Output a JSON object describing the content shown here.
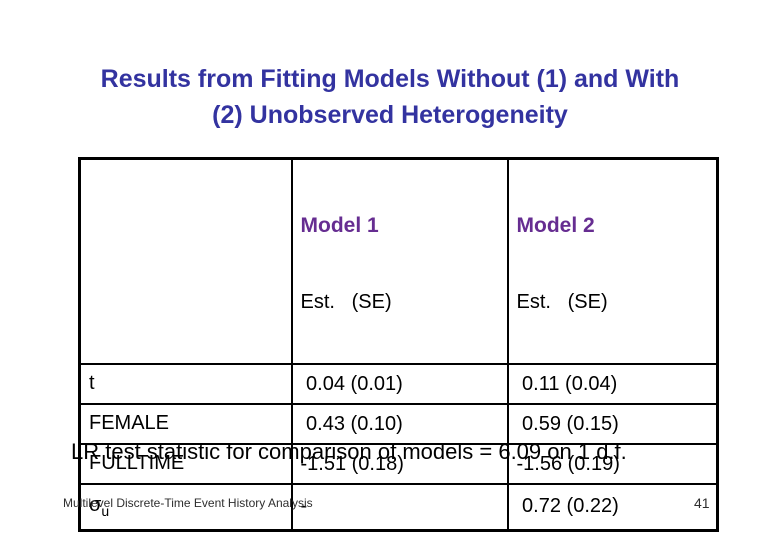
{
  "slide": {
    "title_lines": [
      "Results from Fitting Models Without (1) and With",
      "(2) Unobserved Heterogeneity"
    ],
    "table": {
      "corner": "",
      "columns": [
        {
          "title": "Model 1",
          "subtitle": "Est.   (SE)"
        },
        {
          "title": "Model 2",
          "subtitle": "Est.   (SE)"
        }
      ],
      "rows": [
        {
          "label": "t",
          "m1": " 0.04 (0.01)",
          "m2": " 0.11 (0.04)"
        },
        {
          "label": "FEMALE",
          "m1": " 0.43 (0.10)",
          "m2": " 0.59 (0.15)"
        },
        {
          "label": "FULLTIME",
          "m1": "-1.51 (0.18)",
          "m2": "-1.56 (0.19)"
        },
        {
          "label": "σ",
          "label_sub": "u",
          "m1": "-",
          "m2": " 0.72 (0.22)"
        }
      ]
    },
    "note": "LR test statistic for comparison of models = 6.09 on 1 d.f.",
    "footer": {
      "left": "Multilevel Discrete-Time Event History Analysis",
      "page": "41"
    }
  },
  "colors": {
    "background": "#FFFFFF",
    "title_text": "#3333A0",
    "model_header_text": "#662D91",
    "body_text": "#000000",
    "footer_text": "#2E2E2E",
    "table_border": "#000000"
  }
}
